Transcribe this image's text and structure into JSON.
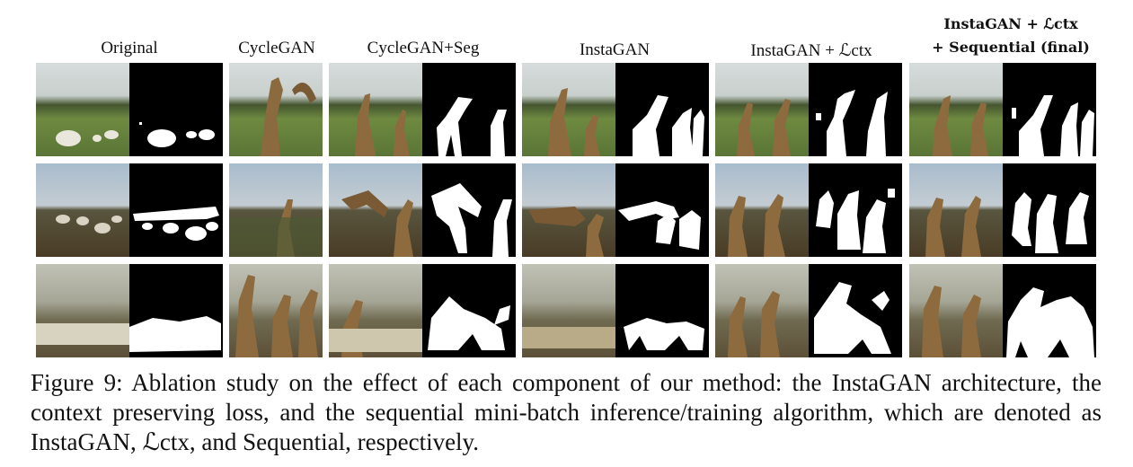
{
  "headers": {
    "original": "Original",
    "cyclegan": "CycleGAN",
    "cyclegan_seg": "CycleGAN+Seg",
    "instagan": "InstaGAN",
    "instagan_ctx": "InstaGAN + ℒctx",
    "final_line1": "InstaGAN + ℒctx",
    "final_line2": "+ Sequential (final)"
  },
  "caption": "Figure 9: Ablation study on the effect of each component of our method: the InstaGAN architecture, the context preserving loss, and the sequential mini-batch inference/training algorithm, which are denoted as InstaGAN, ℒctx, and Sequential, respectively.",
  "rows": [
    {
      "scene": "sheep in green field",
      "sky": "#cfd6d8",
      "ground": "#5f7a3a",
      "trees": "#3e4f2c"
    },
    {
      "scene": "sheep on hill under blue sky",
      "sky": "#9fb3c4",
      "ground": "#5a4a30",
      "trees": "#4a4a36"
    },
    {
      "scene": "flock of sheep on hazy hillside",
      "sky": "#b9b8a8",
      "ground": "#6b6048",
      "trees": "#4f4b3a"
    }
  ],
  "colors": {
    "mask_bg": "#000000",
    "mask_fg": "#ffffff"
  }
}
